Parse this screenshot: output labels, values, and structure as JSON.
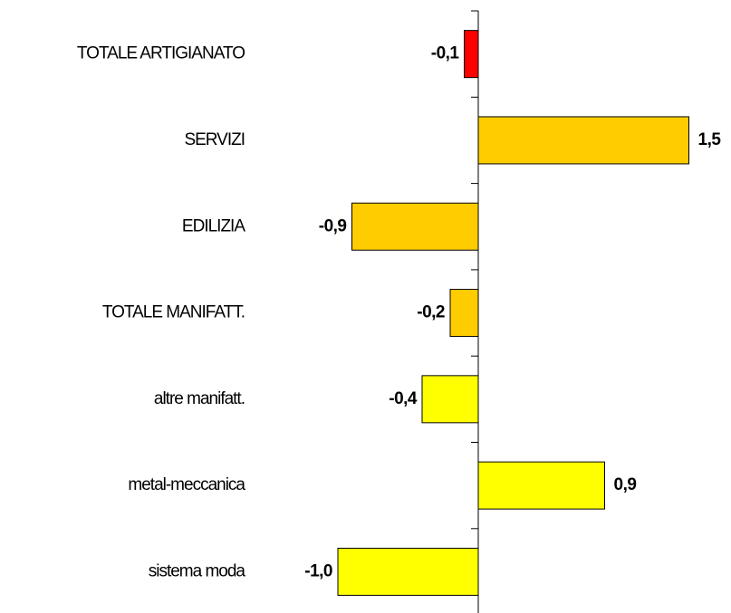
{
  "chart_data": {
    "type": "hbar",
    "categories": [
      "TOTALE ARTIGIANATO",
      "SERVIZI",
      "EDILIZIA",
      "TOTALE MANIFATT.",
      "altre manifatt.",
      "metal-meccanica",
      "sistema moda"
    ],
    "values": [
      -0.1,
      1.5,
      -0.9,
      -0.2,
      -0.4,
      0.9,
      -1.0
    ],
    "value_labels": [
      "-0,1",
      "1,5",
      "-0,9",
      "-0,2",
      "-0,4",
      "0,9",
      "-1,0"
    ],
    "colors": [
      "#ff0000",
      "#ffcc00",
      "#ffcc00",
      "#ffcc00",
      "#ffff00",
      "#ffff00",
      "#ffff00"
    ]
  }
}
